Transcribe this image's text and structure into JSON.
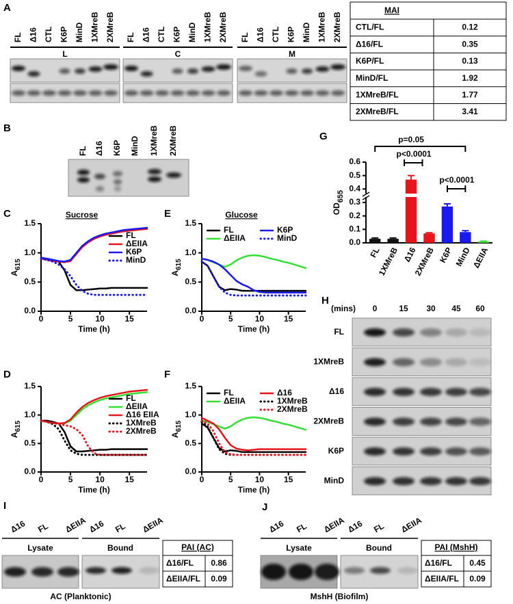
{
  "panels": {
    "A": {
      "letter": "A",
      "lanes": [
        {
          "text": "FL",
          "color": "#000000"
        },
        {
          "text": "Δ16",
          "color": "#e8141b"
        },
        {
          "text": "CTL",
          "color": "#000000"
        },
        {
          "text": "K6P",
          "color": "#1a1aee"
        },
        {
          "text": "MinD",
          "color": "#1a1aee"
        },
        {
          "text": "1XMreB",
          "color": "#000000"
        },
        {
          "text": "2XMreB",
          "color": "#e8141b"
        }
      ],
      "groups": [
        "L",
        "C",
        "M"
      ],
      "table": {
        "title": "MAI",
        "rows": [
          [
            "CTL/FL",
            0.12
          ],
          [
            "Δ16/FL",
            0.35
          ],
          [
            "K6P/FL",
            0.13
          ],
          [
            "MinD/FL",
            1.92
          ],
          [
            "1XMreB/FL",
            1.77
          ],
          [
            "2XMreB/FL",
            3.41
          ]
        ]
      }
    },
    "B": {
      "letter": "B",
      "lanes": [
        {
          "text": "FL",
          "color": "#000000"
        },
        {
          "text": "Δ16",
          "color": "#e8141b"
        },
        {
          "text": "K6P",
          "color": "#1a1aee"
        },
        {
          "text": "MinD",
          "color": "#1a1aee"
        },
        {
          "text": "1XMreB",
          "color": "#000000"
        },
        {
          "text": "2XMreB",
          "color": "#e8141b"
        }
      ]
    },
    "H": {
      "letter": "H",
      "unit": "(mins)",
      "times": [
        0,
        15,
        30,
        45,
        60
      ],
      "rows": [
        {
          "text": "FL",
          "color": "#000000"
        },
        {
          "text": "1XMreB",
          "color": "#000000"
        },
        {
          "text": "Δ16",
          "color": "#e8141b"
        },
        {
          "text": "2XMreB",
          "color": "#e8141b"
        },
        {
          "text": "K6P",
          "color": "#1a1aee"
        },
        {
          "text": "MinD",
          "color": "#1a1aee"
        }
      ]
    },
    "I": {
      "letter": "I",
      "lanes": [
        "Δ16",
        "FL",
        "ΔEIIA"
      ],
      "groups": [
        "Lysate",
        "Bound"
      ],
      "table": {
        "title": "PAI (AC)",
        "rows": [
          [
            "Δ16/FL",
            0.86
          ],
          [
            "ΔEIIA/FL",
            0.09
          ]
        ]
      },
      "caption": "AC (Planktonic)"
    },
    "J": {
      "letter": "J",
      "lanes": [
        "Δ16",
        "FL",
        "ΔEIIA"
      ],
      "groups": [
        "Lysate",
        "Bound"
      ],
      "table": {
        "title": "PAI (MshH)",
        "rows": [
          [
            "Δ16/FL",
            0.45
          ],
          [
            "ΔEIIA/FL",
            0.09
          ]
        ]
      },
      "caption": "MshH (Biofilm)"
    }
  },
  "chart_data": [
    {
      "type": "line",
      "label": "C",
      "title": "Sucrose",
      "ylabel": {
        "main": "A",
        "sub": "615"
      },
      "xlabel": "Time (h)",
      "legend_columns": 1,
      "x": [
        0,
        1,
        2,
        3,
        4,
        5,
        6,
        7,
        8,
        9,
        10,
        11,
        12,
        13,
        14,
        15,
        16,
        17,
        18
      ],
      "xlim": [
        0,
        18
      ],
      "xticks": [
        0,
        5,
        10,
        15
      ],
      "ylim": [
        0,
        1.5
      ],
      "yticks": [
        {
          "value": 0,
          "label": "0.0"
        },
        0.5,
        {
          "value": 1,
          "label": "1.0"
        },
        1.5
      ],
      "series": [
        {
          "name": "FL",
          "color": "#000000",
          "style": "solid",
          "values": [
            0.9,
            0.9,
            0.88,
            0.85,
            0.7,
            0.45,
            0.36,
            0.36,
            0.37,
            0.38,
            0.39,
            0.39,
            0.4,
            0.4,
            0.4,
            0.4,
            0.4,
            0.4,
            0.4
          ]
        },
        {
          "name": "ΔEIIA",
          "color": "#e8141b",
          "style": "solid",
          "values": [
            0.9,
            0.88,
            0.86,
            0.85,
            0.84,
            0.86,
            0.98,
            1.1,
            1.18,
            1.24,
            1.28,
            1.31,
            1.33,
            1.35,
            1.37,
            1.38,
            1.39,
            1.4,
            1.41
          ]
        },
        {
          "name": "K6P",
          "color": "#1a1aee",
          "style": "solid",
          "values": [
            0.92,
            0.9,
            0.88,
            0.86,
            0.85,
            0.88,
            1.0,
            1.12,
            1.2,
            1.26,
            1.3,
            1.33,
            1.35,
            1.37,
            1.39,
            1.4,
            1.41,
            1.42,
            1.43
          ]
        },
        {
          "name": "MinD",
          "color": "#1a1aee",
          "style": "dotted",
          "values": [
            0.9,
            0.88,
            0.85,
            0.8,
            0.72,
            0.6,
            0.45,
            0.35,
            0.3,
            0.28,
            0.28,
            0.28,
            0.28,
            0.28,
            0.28,
            0.28,
            0.28,
            0.28,
            0.28
          ]
        }
      ]
    },
    {
      "type": "line",
      "label": "E",
      "title": "Glucose",
      "ylabel": {
        "main": "A",
        "sub": "615"
      },
      "xlabel": "Time (h)",
      "legend_columns": 2,
      "x": [
        0,
        1,
        2,
        3,
        4,
        5,
        6,
        7,
        8,
        9,
        10,
        11,
        12,
        13,
        14,
        15,
        16,
        17,
        18
      ],
      "xlim": [
        0,
        18
      ],
      "xticks": [
        0,
        5,
        10,
        15
      ],
      "ylim": [
        0,
        1.5
      ],
      "yticks": [
        {
          "value": 0,
          "label": "0.0"
        },
        0.5,
        {
          "value": 1,
          "label": "1.0"
        },
        1.5
      ],
      "series": [
        {
          "name": "FL",
          "color": "#000000",
          "style": "solid",
          "values": [
            0.85,
            0.78,
            0.6,
            0.42,
            0.36,
            0.38,
            0.37,
            0.35,
            0.35,
            0.35,
            0.35,
            0.35,
            0.35,
            0.35,
            0.35,
            0.35,
            0.35,
            0.35,
            0.35
          ]
        },
        {
          "name": "ΔEIIA",
          "color": "#33e033",
          "style": "solid",
          "values": [
            0.9,
            0.88,
            0.84,
            0.8,
            0.76,
            0.8,
            0.87,
            0.92,
            0.95,
            0.96,
            0.95,
            0.93,
            0.9,
            0.88,
            0.85,
            0.83,
            0.8,
            0.77,
            0.74
          ]
        },
        {
          "name": "K6P",
          "color": "#1a1aee",
          "style": "solid",
          "values": [
            0.9,
            0.88,
            0.85,
            0.8,
            0.72,
            0.62,
            0.52,
            0.46,
            0.42,
            0.36,
            0.33,
            0.32,
            0.32,
            0.32,
            0.32,
            0.32,
            0.32,
            0.32,
            0.32
          ]
        },
        {
          "name": "MinD",
          "color": "#1a1aee",
          "style": "dotted",
          "values": [
            0.85,
            0.78,
            0.6,
            0.42,
            0.32,
            0.28,
            0.27,
            0.27,
            0.27,
            0.27,
            0.27,
            0.27,
            0.27,
            0.27,
            0.27,
            0.27,
            0.27,
            0.27,
            0.27
          ]
        }
      ]
    },
    {
      "type": "line",
      "label": "D",
      "ylabel": {
        "main": "A",
        "sub": "615"
      },
      "xlabel": "Time (h)",
      "legend_columns": 1,
      "x": [
        0,
        1,
        2,
        3,
        4,
        5,
        6,
        7,
        8,
        9,
        10,
        11,
        12,
        13,
        14,
        15,
        16,
        17,
        18
      ],
      "xlim": [
        0,
        18
      ],
      "xticks": [
        0,
        5,
        10,
        15
      ],
      "ylim": [
        0,
        1.5
      ],
      "yticks": [
        {
          "value": 0,
          "label": "0.0"
        },
        0.5,
        {
          "value": 1,
          "label": "1.0"
        },
        1.5
      ],
      "series": [
        {
          "name": "FL",
          "color": "#000000",
          "style": "solid",
          "values": [
            0.9,
            0.9,
            0.88,
            0.85,
            0.7,
            0.45,
            0.36,
            0.36,
            0.37,
            0.38,
            0.39,
            0.39,
            0.4,
            0.4,
            0.4,
            0.4,
            0.4,
            0.4,
            0.4
          ]
        },
        {
          "name": "ΔEIIA",
          "color": "#33e033",
          "style": "solid",
          "values": [
            0.9,
            0.88,
            0.86,
            0.85,
            0.85,
            0.9,
            1.0,
            1.1,
            1.17,
            1.22,
            1.26,
            1.29,
            1.31,
            1.33,
            1.35,
            1.37,
            1.38,
            1.39,
            1.4
          ]
        },
        {
          "name": "Δ16 EIIA",
          "color": "#e8141b",
          "style": "solid",
          "values": [
            0.9,
            0.88,
            0.86,
            0.85,
            0.86,
            0.92,
            1.04,
            1.14,
            1.21,
            1.26,
            1.3,
            1.33,
            1.35,
            1.37,
            1.39,
            1.41,
            1.42,
            1.43,
            1.44
          ]
        },
        {
          "name": "1XMreB",
          "color": "#000000",
          "style": "dotted",
          "values": [
            0.9,
            0.88,
            0.84,
            0.75,
            0.55,
            0.38,
            0.32,
            0.3,
            0.3,
            0.3,
            0.3,
            0.3,
            0.3,
            0.3,
            0.3,
            0.3,
            0.3,
            0.3,
            0.3
          ]
        },
        {
          "name": "2XMreB",
          "color": "#e8141b",
          "style": "dotted",
          "values": [
            0.9,
            0.88,
            0.86,
            0.84,
            0.82,
            0.8,
            0.75,
            0.65,
            0.45,
            0.33,
            0.3,
            0.3,
            0.3,
            0.3,
            0.3,
            0.3,
            0.3,
            0.3,
            0.3
          ]
        }
      ]
    },
    {
      "type": "line",
      "label": "F",
      "ylabel": {
        "main": "A",
        "sub": "615"
      },
      "xlabel": "Time (h)",
      "legend_columns": 2,
      "x": [
        0,
        1,
        2,
        3,
        4,
        5,
        6,
        7,
        8,
        9,
        10,
        11,
        12,
        13,
        14,
        15,
        16,
        17,
        18
      ],
      "xlim": [
        0,
        18
      ],
      "xticks": [
        0,
        5,
        10,
        15
      ],
      "ylim": [
        0,
        1.5
      ],
      "yticks": [
        {
          "value": 0,
          "label": "0.0"
        },
        0.5,
        {
          "value": 1,
          "label": "1.0"
        },
        1.5
      ],
      "series": [
        {
          "name": "FL",
          "color": "#000000",
          "style": "solid",
          "values": [
            0.85,
            0.78,
            0.6,
            0.42,
            0.36,
            0.38,
            0.37,
            0.35,
            0.35,
            0.35,
            0.35,
            0.35,
            0.35,
            0.35,
            0.35,
            0.35,
            0.35,
            0.35,
            0.35
          ]
        },
        {
          "name": "ΔEIIA",
          "color": "#33e033",
          "style": "solid",
          "values": [
            0.9,
            0.88,
            0.84,
            0.8,
            0.76,
            0.8,
            0.87,
            0.92,
            0.95,
            0.96,
            0.95,
            0.93,
            0.9,
            0.88,
            0.85,
            0.83,
            0.8,
            0.77,
            0.74
          ]
        },
        {
          "name": "Δ16",
          "color": "#e8141b",
          "style": "solid",
          "values": [
            0.95,
            0.9,
            0.85,
            0.75,
            0.6,
            0.47,
            0.41,
            0.39,
            0.38,
            0.39,
            0.4,
            0.4,
            0.4,
            0.4,
            0.4,
            0.4,
            0.4,
            0.4,
            0.4
          ]
        },
        {
          "name": "1XMreB",
          "color": "#000000",
          "style": "dotted",
          "values": [
            0.88,
            0.8,
            0.6,
            0.4,
            0.32,
            0.3,
            0.3,
            0.3,
            0.3,
            0.3,
            0.3,
            0.3,
            0.3,
            0.3,
            0.3,
            0.3,
            0.3,
            0.3,
            0.3
          ]
        },
        {
          "name": "2XMreB",
          "color": "#e8141b",
          "style": "dotted",
          "values": [
            0.9,
            0.85,
            0.72,
            0.5,
            0.35,
            0.31,
            0.3,
            0.3,
            0.3,
            0.3,
            0.3,
            0.3,
            0.3,
            0.3,
            0.3,
            0.3,
            0.3,
            0.3,
            0.3
          ]
        }
      ]
    },
    {
      "type": "bar",
      "label": "G",
      "ylabel": {
        "main": "OD",
        "sub": "655"
      },
      "categories": [
        "FL",
        "1XMreB",
        "Δ16",
        "2XMreB",
        "K6P",
        "MinD",
        "ΔEIIA"
      ],
      "values": [
        0.03,
        0.03,
        0.47,
        0.07,
        0.27,
        0.08,
        0.01
      ],
      "errors": [
        0.006,
        0.006,
        0.03,
        0.005,
        0.02,
        0.01,
        0.003
      ],
      "colors": [
        "#111111",
        "#111111",
        "#e8141b",
        "#e8141b",
        "#1a1aee",
        "#1a1aee",
        "#33e033"
      ],
      "ylim": [
        0,
        0.6
      ],
      "yticks": [
        {
          "value": 0,
          "label": "0.0"
        },
        0.1,
        0.2,
        0.3,
        0.4,
        0.5,
        0.6
      ],
      "annotations": [
        "p=0.05",
        "p<0.0001",
        "p<0.0001"
      ]
    }
  ]
}
